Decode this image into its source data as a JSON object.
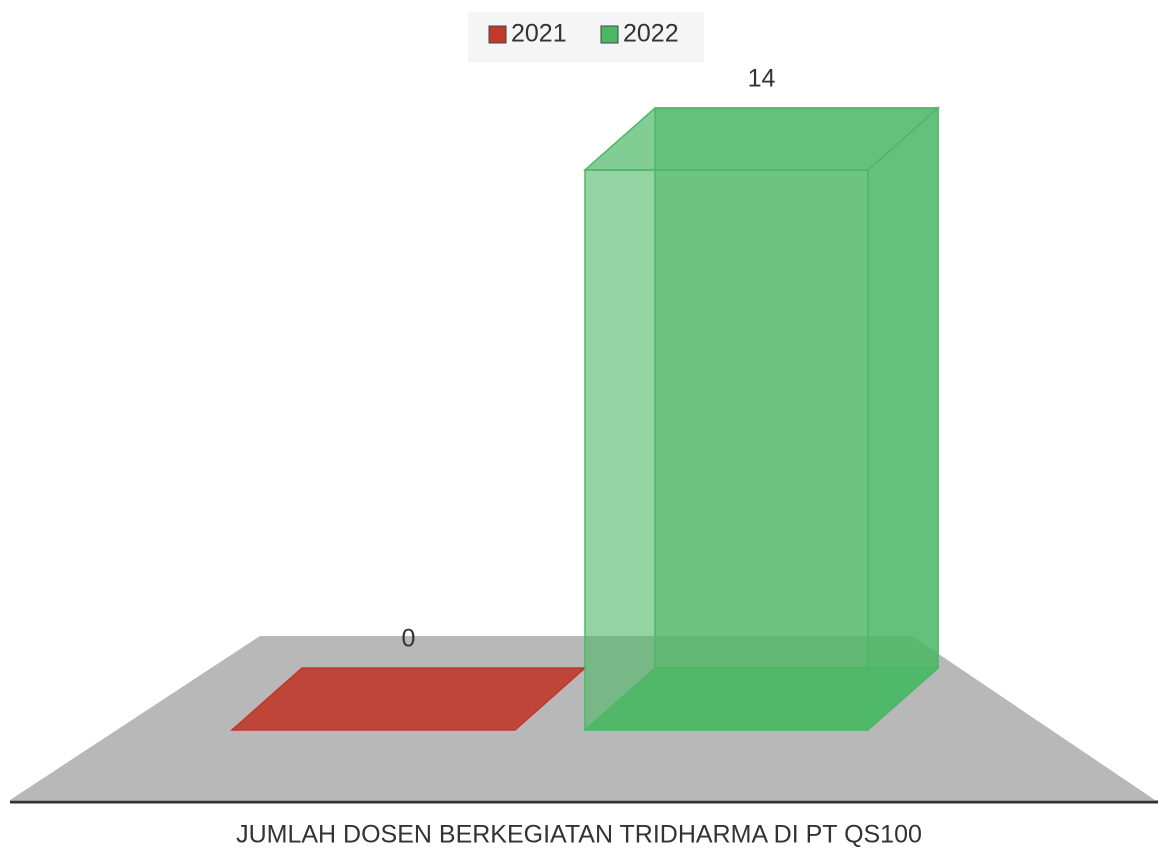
{
  "chart_data": {
    "type": "bar3d",
    "categories": [
      "JUMLAH DOSEN BERKEGIATAN TRIDHARMA DI PT QS100"
    ],
    "series": [
      {
        "name": "2021",
        "color": "#c0392b",
        "values": [
          0
        ]
      },
      {
        "name": "2022",
        "color": "#4cb866",
        "values": [
          14
        ]
      }
    ],
    "legend": "top"
  }
}
